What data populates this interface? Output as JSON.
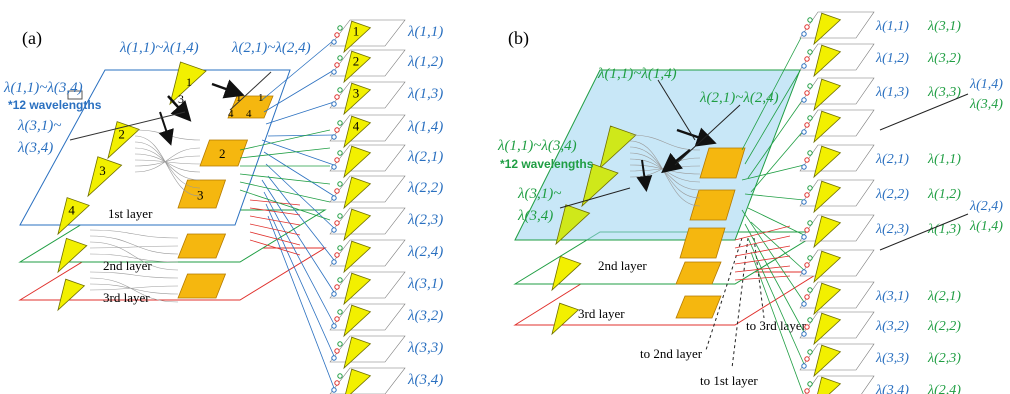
{
  "colors": {
    "blue": "#2a70c0",
    "green": "#1f9e43",
    "red": "#e0302c",
    "tri_fill": "#f2f000",
    "tri_stroke": "#707000",
    "sq_fill": "#f5b70f",
    "sq_stroke": "#b47a00",
    "glass": "#9ad3f0"
  },
  "panel_a": {
    "label": "(a)",
    "top_left_label": "λ(1,1)~λ(3,4)",
    "wavelengths_note": "*12 wavelengths",
    "label_11_14": "λ(1,1)~λ(1,4)",
    "label_21_24": "λ(2,1)~λ(2,4)",
    "label_31": "λ(3,1)~",
    "label_34": "λ(3,4)",
    "layer1": "1st layer",
    "layer2": "2nd layer",
    "layer3": "3rd layer",
    "tri_numbers": [
      "1",
      "2",
      "3",
      "4"
    ],
    "sq_numbers": [
      "1",
      "2",
      "3",
      "4"
    ],
    "out_labels": [
      "λ(1,1)",
      "λ(1,2)",
      "λ(1,3)",
      "λ(1,4)",
      "λ(2,1)",
      "λ(2,2)",
      "λ(2,3)",
      "λ(2,4)",
      "λ(3,1)",
      "λ(3,2)",
      "λ(3,3)",
      "λ(3,4)"
    ]
  },
  "panel_b": {
    "label": "(b)",
    "label_11_14": "λ(1,1)~λ(1,4)",
    "label_21_24": "λ(2,1)~λ(2,4)",
    "top_left_label": "λ(1,1)~λ(3,4)",
    "wavelengths_note": "*12 wavelengths",
    "label_31": "λ(3,1)~",
    "label_34": "λ(3,4)",
    "layer2": "2nd layer",
    "layer3": "3rd layer",
    "to2": "to 2nd layer",
    "to3": "to 3rd layer",
    "to1": "to 1st layer",
    "out_labels_blue": [
      "λ(1,1)",
      "λ(1,2)",
      "λ(1,3)",
      "λ(2,1)",
      "λ(2,2)",
      "λ(2,3)",
      "λ(3,1)",
      "λ(3,2)",
      "λ(3,3)",
      "λ(3,4)"
    ],
    "out_labels_green": [
      "λ(3,1)",
      "λ(3,2)",
      "λ(3,3)",
      "λ(1,1)",
      "λ(1,2)",
      "λ(1,3)",
      "λ(2,1)",
      "λ(2,2)",
      "λ(2,3)",
      "λ(2,4)"
    ],
    "extra_14": "λ(1,4)",
    "extra_34": "λ(3,4)",
    "extra_24": "λ(2,4)",
    "extra_14b": "λ(1,4)"
  }
}
